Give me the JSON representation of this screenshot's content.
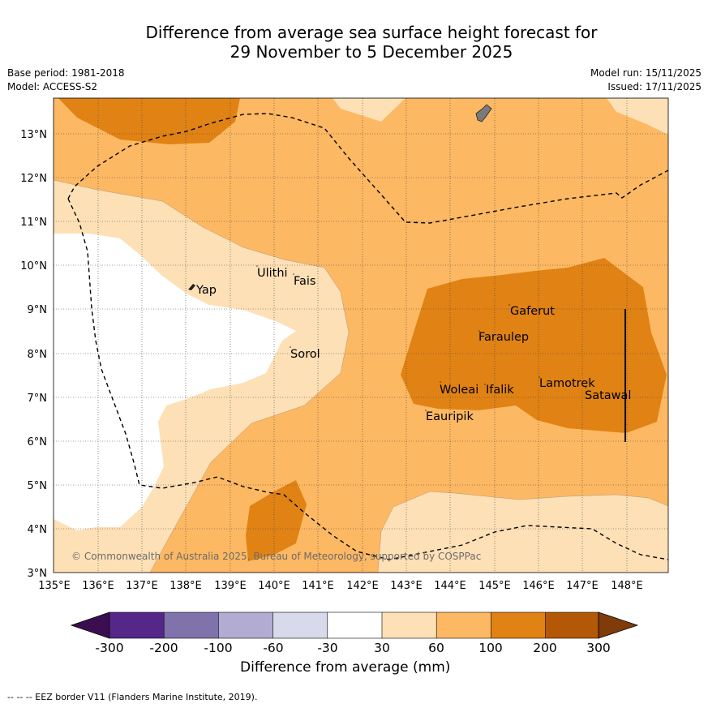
{
  "title_line1": "Difference from average sea surface height forecast for",
  "title_line2": "29 November to 5 December 2025",
  "base_period": "Base period: 1981-2018",
  "model": "Model: ACCESS-S2",
  "model_run": "Model run: 15/11/2025",
  "issued": "Issued: 17/11/2025",
  "map": {
    "lat_labels": [
      "3°N",
      "4°N",
      "5°N",
      "6°N",
      "7°N",
      "8°N",
      "9°N",
      "10°N",
      "11°N",
      "12°N",
      "13°N"
    ],
    "lon_labels": [
      "135°E",
      "136°E",
      "137°E",
      "138°E",
      "139°E",
      "140°E",
      "141°E",
      "142°E",
      "143°E",
      "144°E",
      "145°E",
      "146°E",
      "147°E",
      "148°E"
    ],
    "places": [
      {
        "name": "Ulithi"
      },
      {
        "name": "Fais"
      },
      {
        "name": "Yap"
      },
      {
        "name": "Sorol"
      },
      {
        "name": "Gaferut"
      },
      {
        "name": "Faraulep"
      },
      {
        "name": "Woleai"
      },
      {
        "name": "Ifalik"
      },
      {
        "name": "Lamotrek"
      },
      {
        "name": "Satawal"
      },
      {
        "name": "Eauripik"
      }
    ],
    "copyright": "© Commonwealth of Australia 2025, Bureau of Meteorology, supported by COSPPac"
  },
  "colorbar": {
    "title": "Difference from average (mm)",
    "ticks": [
      "-300",
      "-200",
      "-100",
      "-60",
      "-30",
      "30",
      "60",
      "100",
      "200",
      "300"
    ],
    "colors": [
      "#3b0f4f",
      "#542788",
      "#8073ac",
      "#b2abd2",
      "#d8daeb",
      "#ffffff",
      "#fee0b6",
      "#fdb863",
      "#e08214",
      "#b35806",
      "#7f3b08"
    ]
  },
  "footer": "--  --  -- EEZ border V11 (Flanders Marine Institute, 2019)."
}
